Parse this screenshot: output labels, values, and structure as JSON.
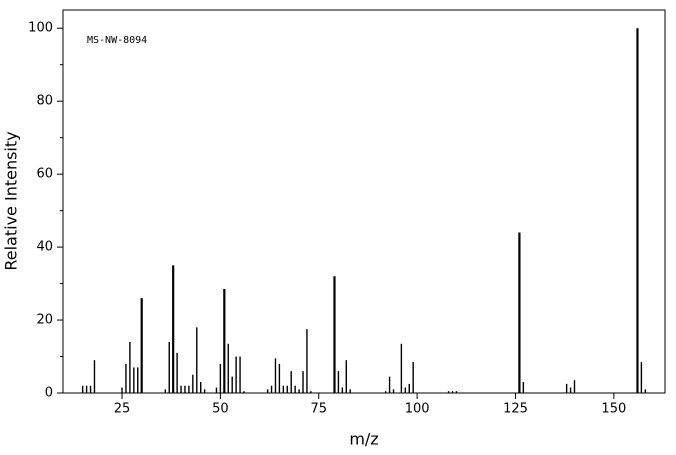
{
  "chart_data": {
    "type": "spectrum",
    "annotation": "MS-NW-8094",
    "x_label": "m/z",
    "y_label": "Relative Intensity",
    "color": "#000000",
    "xlim": [
      10,
      163
    ],
    "ylim": [
      0,
      105
    ],
    "xticks": [
      25,
      50,
      75,
      100,
      125,
      150
    ],
    "yticks": [
      0,
      20,
      40,
      60,
      80,
      100
    ],
    "yminorticks": [
      10,
      30,
      50,
      70,
      90
    ],
    "x": [
      15,
      16,
      17,
      18,
      25,
      26,
      27,
      28,
      29,
      30,
      36,
      37,
      38,
      39,
      40,
      41,
      42,
      43,
      44,
      45,
      46,
      49,
      50,
      51,
      52,
      53,
      54,
      55,
      56,
      62,
      63,
      64,
      65,
      66,
      67,
      68,
      69,
      70,
      71,
      72,
      73,
      79,
      80,
      81,
      82,
      83,
      92,
      93,
      94,
      96,
      97,
      98,
      99,
      108,
      109,
      110,
      126,
      127,
      138,
      139,
      140,
      156,
      157,
      158
    ],
    "values": [
      2,
      2,
      2,
      9,
      1.5,
      8,
      14,
      7,
      7,
      26,
      1,
      14,
      35,
      11,
      2,
      2,
      2,
      5,
      18,
      3,
      1,
      1.5,
      8,
      28.5,
      13.5,
      4.5,
      10,
      10,
      0.5,
      1,
      2,
      9.5,
      8,
      2,
      2,
      6,
      2,
      1,
      6,
      17.5,
      0.5,
      32,
      6,
      1.5,
      9,
      1,
      0.5,
      4.5,
      1,
      13.5,
      1.5,
      2.5,
      8.5,
      0.5,
      0.5,
      0.5,
      44,
      3,
      2.5,
      1.5,
      3.5,
      100,
      8.5,
      1
    ]
  }
}
